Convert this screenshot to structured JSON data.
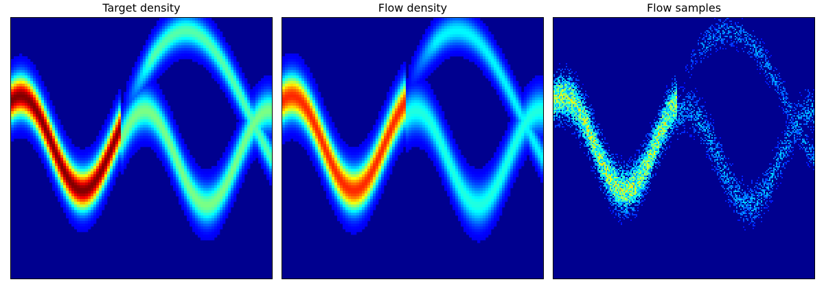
{
  "chart_data": [
    {
      "type": "heatmap",
      "title": "Target density",
      "xlabel": "",
      "ylabel": "",
      "xlim": [
        -4,
        4
      ],
      "ylim": [
        -4,
        4
      ],
      "axes_ticks": false,
      "colormap": "jet",
      "density": {
        "modes": [
          {
            "x_range": [
              -4,
              -0.6
            ],
            "center": "0.15 + 1.45*sin(1.65*(x+0.85))",
            "width": 0.42,
            "peak": 1.0
          },
          {
            "x_range": [
              -0.6,
              4
            ],
            "center": "-0.3 + 1.45*sin(1.65*(x+0.85))",
            "width": 0.4,
            "peak": 0.45
          },
          {
            "x_range": [
              -0.6,
              4
            ],
            "center": "1.0 + 2.6*sin(0.8*(x+0.6))",
            "width": 0.32,
            "peak": 0.4
          }
        ]
      }
    },
    {
      "type": "heatmap",
      "title": "Flow density",
      "xlabel": "",
      "ylabel": "",
      "xlim": [
        -4,
        4
      ],
      "ylim": [
        -4,
        4
      ],
      "axes_ticks": false,
      "colormap": "jet",
      "density": {
        "modes": [
          {
            "x_range": [
              -4,
              -0.2
            ],
            "center": "0.15 + 1.45*sin(1.65*(x+0.85))",
            "width": 0.45,
            "peak": 0.85
          },
          {
            "x_range": [
              -0.2,
              4
            ],
            "center": "-0.3 + 1.45*sin(1.65*(x+0.85))",
            "width": 0.42,
            "peak": 0.35
          },
          {
            "x_range": [
              -0.2,
              4
            ],
            "center": "1.0 + 2.6*sin(0.8*(x+0.6))",
            "width": 0.3,
            "peak": 0.3
          }
        ]
      }
    },
    {
      "type": "scatter",
      "title": "Flow samples",
      "xlabel": "",
      "ylabel": "",
      "xlim": [
        -4,
        4
      ],
      "ylim": [
        -4,
        4
      ],
      "axes_ticks": false,
      "colormap": "jet",
      "rendering": "2d-histogram"
    }
  ]
}
